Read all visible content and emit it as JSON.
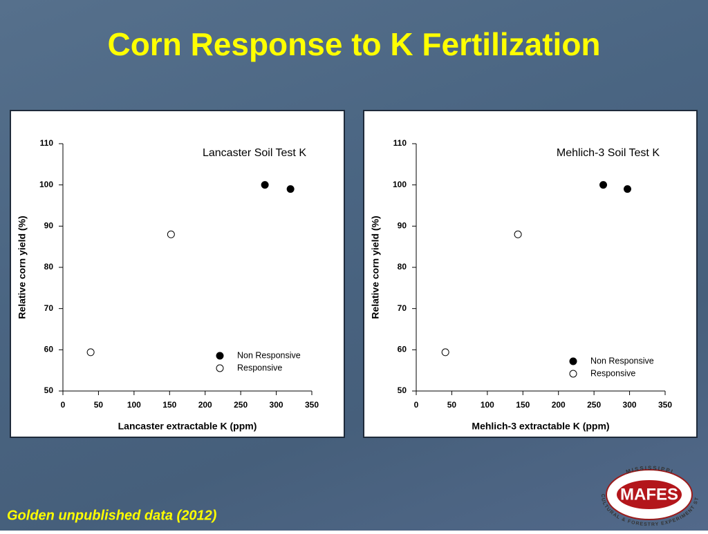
{
  "title": "Corn Response to K Fertilization",
  "footer": "Golden unpublished data (2012)",
  "logo": {
    "top": "MISSISSIPPI",
    "name": "MAFES",
    "bottom": "AGRICULTURAL & FORESTRY EXPERIMENT STATION"
  },
  "chart_data": [
    {
      "type": "scatter",
      "annotation": "Lancaster Soil Test K",
      "xlabel": "Lancaster extractable K (ppm)",
      "ylabel": "Relative corn yield (%)",
      "xlim": [
        0,
        350
      ],
      "xticks": [
        0,
        50,
        100,
        150,
        200,
        250,
        300,
        350
      ],
      "ylim": [
        50,
        110
      ],
      "yticks": [
        50,
        60,
        70,
        80,
        90,
        100,
        110
      ],
      "legend": "lower right",
      "series": [
        {
          "name": "Non Responsive",
          "color": "#000000",
          "filled": true,
          "x": [
            284,
            320
          ],
          "values": [
            100,
            99
          ]
        },
        {
          "name": "Responsive",
          "color": "#000000",
          "filled": false,
          "x": [
            39,
            152
          ],
          "values": [
            59.4,
            88
          ]
        }
      ]
    },
    {
      "type": "scatter",
      "annotation": "Mehlich-3 Soil Test K",
      "xlabel": "Mehlich-3 extractable K (ppm)",
      "ylabel": "Relative corn yield (%)",
      "xlim": [
        0,
        350
      ],
      "xticks": [
        0,
        50,
        100,
        150,
        200,
        250,
        300,
        350
      ],
      "ylim": [
        50,
        110
      ],
      "yticks": [
        50,
        60,
        70,
        80,
        90,
        100,
        110
      ],
      "legend": "lower right",
      "series": [
        {
          "name": "Non Responsive",
          "color": "#000000",
          "filled": true,
          "x": [
            263,
            297
          ],
          "values": [
            100,
            99
          ]
        },
        {
          "name": "Responsive",
          "color": "#000000",
          "filled": false,
          "x": [
            41,
            143
          ],
          "values": [
            59.4,
            88
          ]
        }
      ]
    }
  ]
}
